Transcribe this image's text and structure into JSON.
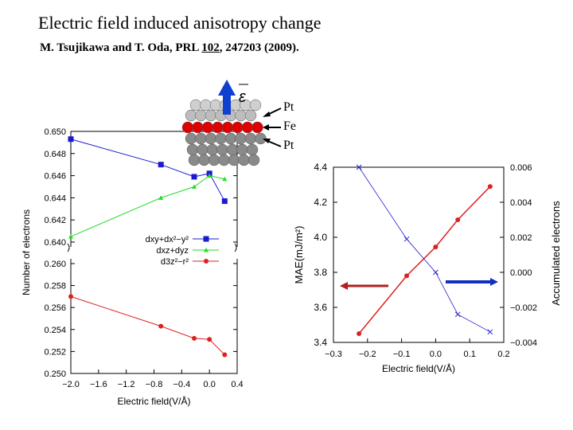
{
  "slide": {
    "title": "Electric field induced anisotropy change",
    "citation_prefix": "M. Tsujikawa and T. Oda,  PRL ",
    "citation_volume": "102",
    "citation_suffix": ", 247203 (2009).",
    "inset": {
      "field_symbol": "ε",
      "layers": [
        "Pt",
        "Fe",
        "Pt"
      ],
      "colors": {
        "Pt": "#8a8a8a",
        "Fe": "#e00000",
        "field_arrow": "#1040d0"
      }
    }
  },
  "chart_data": [
    {
      "type": "line",
      "broken_y_axis": true,
      "xlabel": "Electric field(V/Å)",
      "ylabel": "Number of electrons",
      "xlim": [
        -2.0,
        0.4
      ],
      "xticks": [
        "-2.0",
        "-1.6",
        "-1.2",
        "-0.8",
        "-0.4",
        "0.0",
        "0.4"
      ],
      "upper_ylim": [
        0.64,
        0.65
      ],
      "upper_yticks": [
        "0.640",
        "0.642",
        "0.644",
        "0.646",
        "0.648",
        "0.650"
      ],
      "lower_ylim": [
        0.25,
        0.26
      ],
      "lower_yticks": [
        "0.250",
        "0.252",
        "0.254",
        "0.256",
        "0.258",
        "0.260"
      ],
      "legend_position": "center-right",
      "x": [
        -2.0,
        -0.7,
        -0.22,
        0.0,
        0.22
      ],
      "series": [
        {
          "name": "dxy+dx²−y²",
          "panel": "upper",
          "color": "#1a1ad0",
          "marker": "square",
          "values": [
            0.6493,
            0.647,
            0.6459,
            0.6462,
            0.6437
          ]
        },
        {
          "name": "dxz+dyz",
          "panel": "upper",
          "color": "#22dd22",
          "marker": "triangle",
          "values": [
            0.6405,
            0.644,
            0.645,
            0.646,
            0.6457
          ]
        },
        {
          "name": "d3z²−r²",
          "panel": "lower",
          "color": "#dd2020",
          "marker": "circle",
          "values": [
            0.257,
            0.2543,
            0.2532,
            0.2531,
            0.2517
          ]
        }
      ]
    },
    {
      "type": "line",
      "xlabel": "Electric field(V/Å)",
      "ylabel": "MAE(mJ/m²)",
      "y2label": "Accumulated electrons",
      "xlim": [
        -0.3,
        0.2
      ],
      "xticks": [
        "-0.3",
        "-0.2",
        "-0.1",
        "0.0",
        "0.1",
        "0.2"
      ],
      "ylim": [
        3.4,
        4.4
      ],
      "yticks": [
        "3.4",
        "3.6",
        "3.8",
        "4.0",
        "4.2",
        "4.4"
      ],
      "y2lim": [
        -0.004,
        0.006
      ],
      "y2ticks": [
        "-0.004",
        "-0.002",
        "0.000",
        "0.002",
        "0.004",
        "0.006"
      ],
      "series": [
        {
          "axis": "left",
          "color": "#dd2020",
          "marker": "circle",
          "x": [
            -0.225,
            -0.085,
            0.0,
            0.065,
            0.16
          ],
          "values": [
            3.45,
            3.78,
            3.945,
            4.1,
            4.29
          ]
        },
        {
          "axis": "right",
          "color": "#2222cc",
          "marker": "cross",
          "x": [
            -0.225,
            -0.085,
            0.0,
            0.065,
            0.16
          ],
          "values": [
            0.006,
            0.0019,
            0.0,
            -0.0024,
            -0.0034
          ]
        }
      ]
    }
  ]
}
